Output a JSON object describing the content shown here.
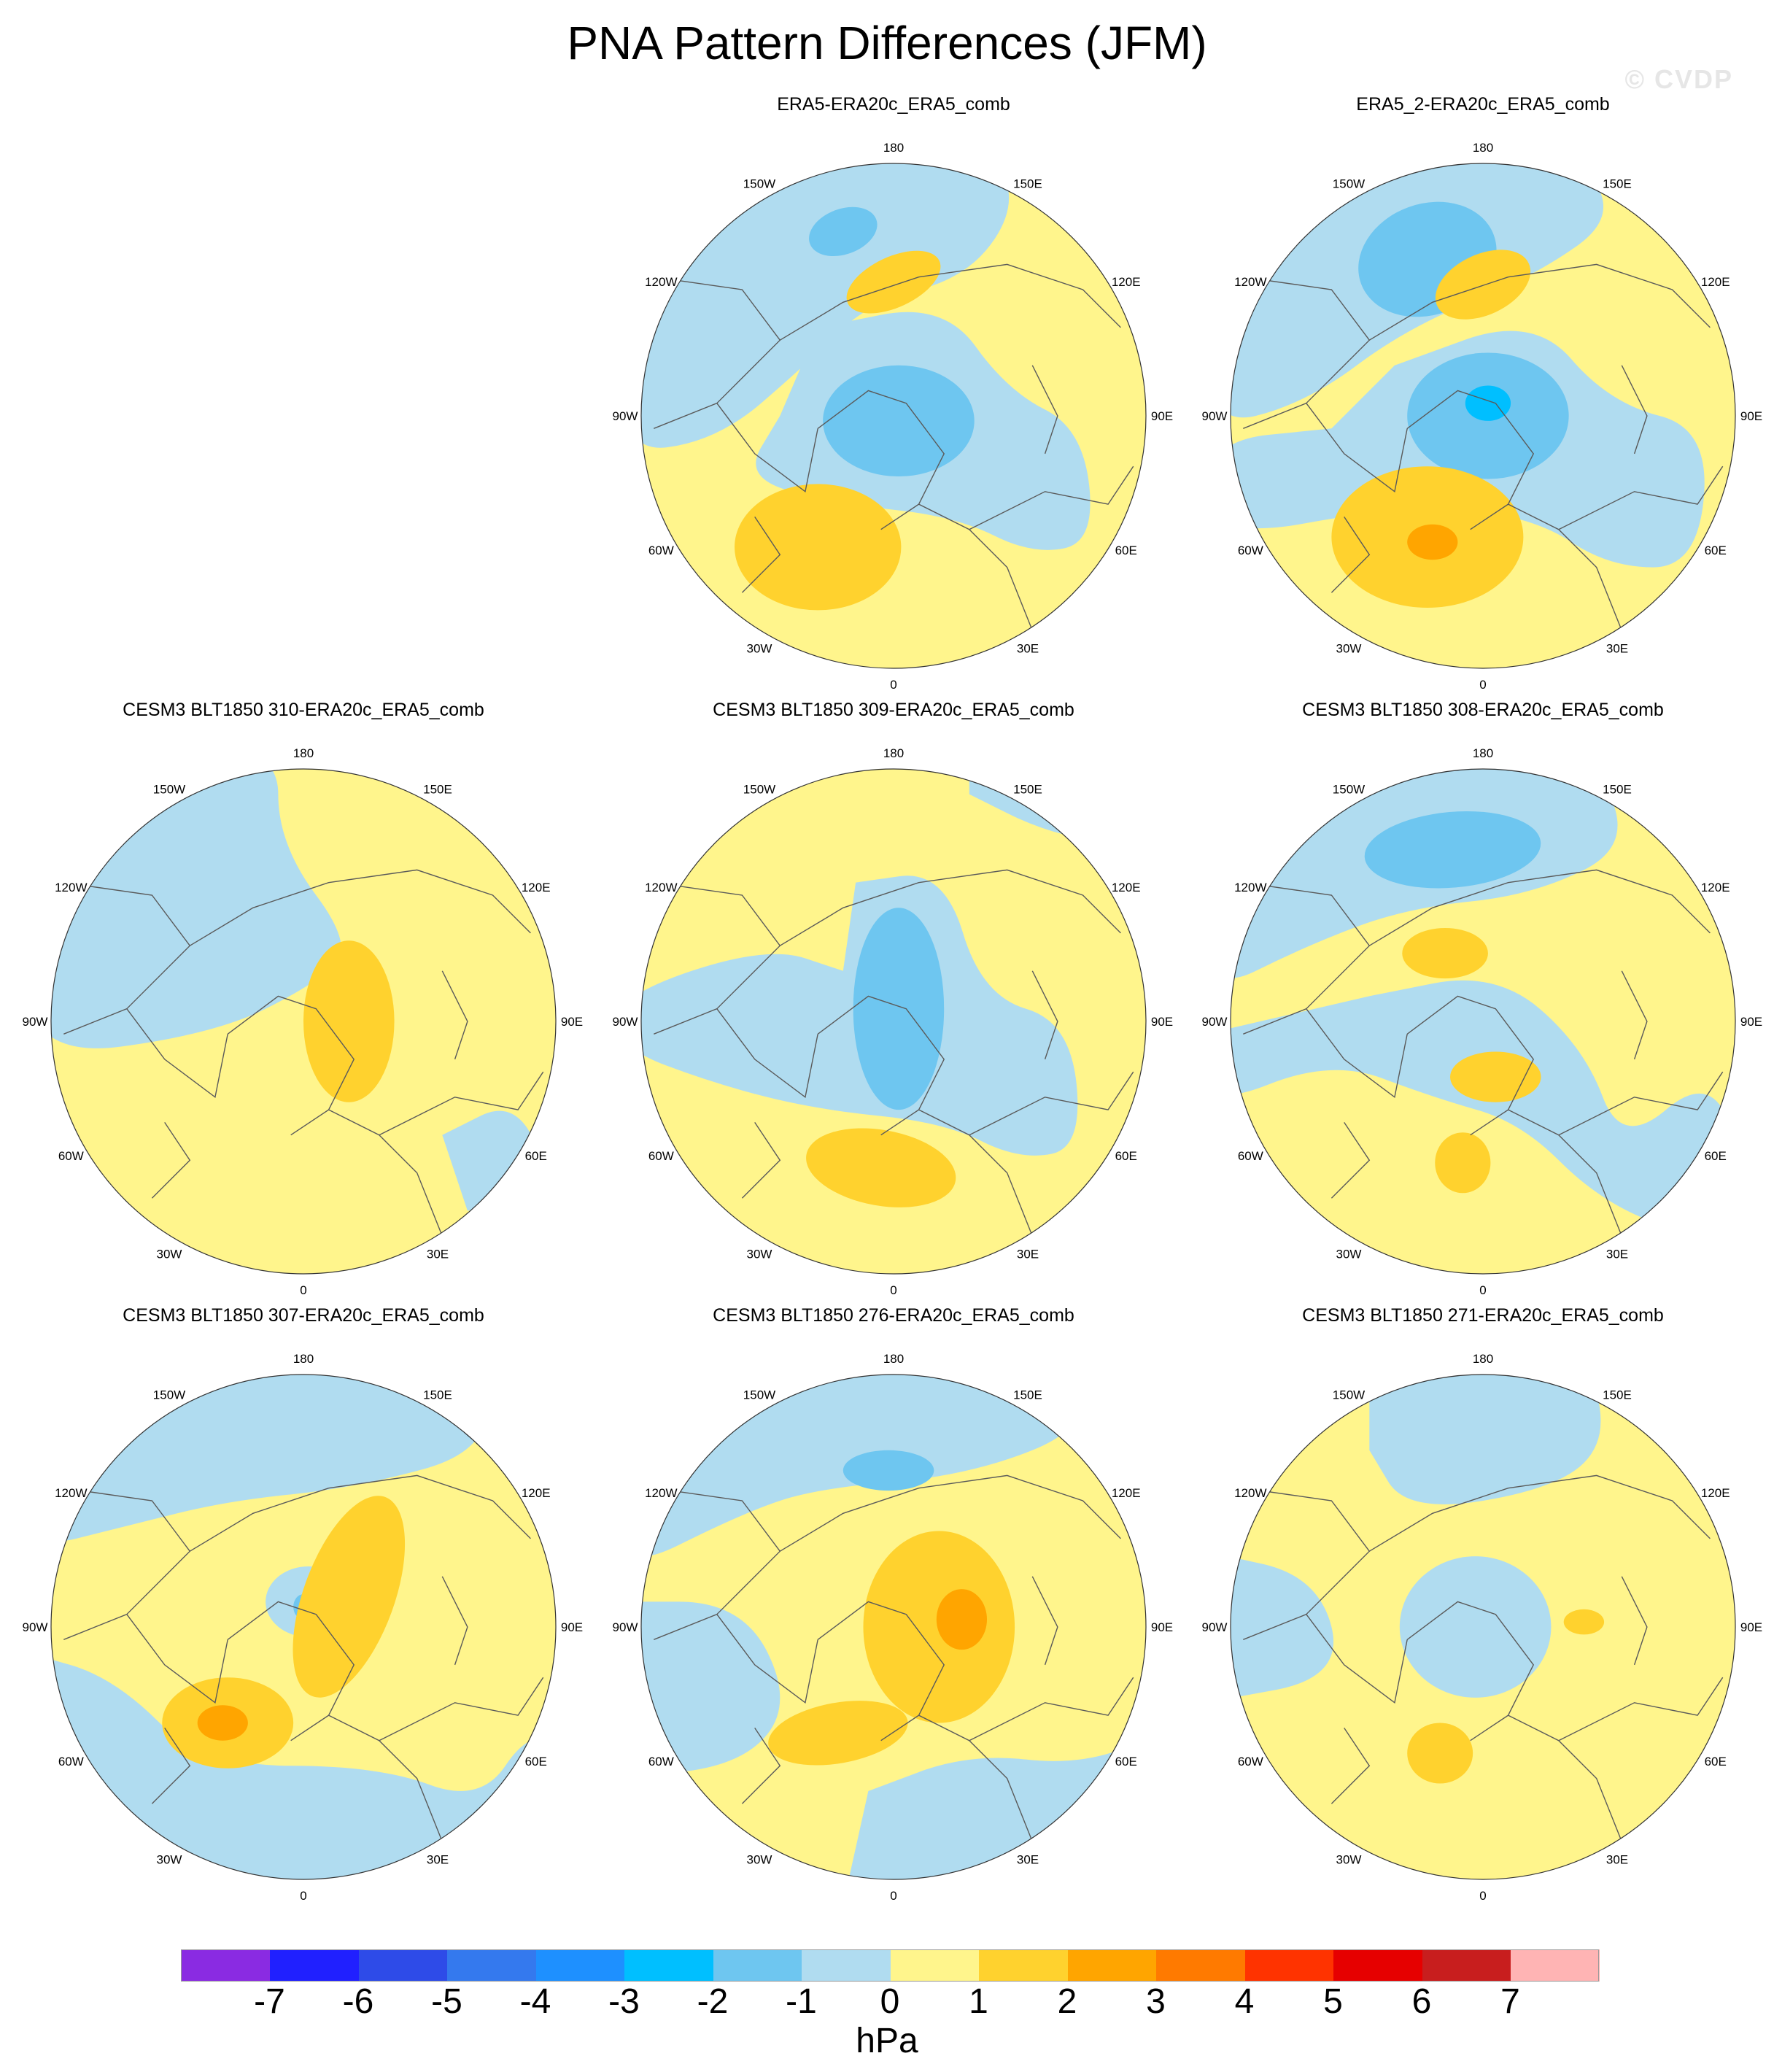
{
  "title": "PNA Pattern Differences (JFM)",
  "watermark": "© CVDP",
  "chart_data": {
    "type": "polar-map-panels",
    "title": "PNA Pattern Differences (JFM)",
    "projection": "north polar stereographic",
    "variable": "sea level pressure difference",
    "units": "hPa",
    "lon_labels": [
      "180",
      "150E",
      "120E",
      "90E",
      "60E",
      "30E",
      "0",
      "30W",
      "60W",
      "90W",
      "120W",
      "150W"
    ],
    "colorbar": {
      "levels": [
        -7,
        -6,
        -5,
        -4,
        -3,
        -2,
        -1,
        0,
        1,
        2,
        3,
        4,
        5,
        6,
        7
      ],
      "tick_labels": [
        "-7",
        "-6",
        "-5",
        "-4",
        "-3",
        "-2",
        "-1",
        "0",
        "1",
        "2",
        "3",
        "4",
        "5",
        "6",
        "7"
      ],
      "colors": [
        "#8a2be2",
        "#2020ff",
        "#2e4be8",
        "#3479ee",
        "#1e90ff",
        "#00bfff",
        "#6ec6f0",
        "#b0dcf0",
        "#fff58c",
        "#ffd22e",
        "#ffa500",
        "#ff7a00",
        "#ff3300",
        "#e60000",
        "#c81e1e",
        "#ffb4b4"
      ],
      "label": "hPa"
    },
    "panels": [
      {
        "title": "ERA5-ERA20c_ERA5_comb"
      },
      {
        "title": "ERA5_2-ERA20c_ERA5_comb"
      },
      {
        "title": "CESM3 BLT1850 310-ERA20c_ERA5_comb"
      },
      {
        "title": "CESM3 BLT1850 309-ERA20c_ERA5_comb"
      },
      {
        "title": "CESM3 BLT1850 308-ERA20c_ERA5_comb"
      },
      {
        "title": "CESM3 BLT1850 307-ERA20c_ERA5_comb"
      },
      {
        "title": "CESM3 BLT1850 276-ERA20c_ERA5_comb"
      },
      {
        "title": "CESM3 BLT1850 271-ERA20c_ERA5_comb"
      }
    ]
  }
}
